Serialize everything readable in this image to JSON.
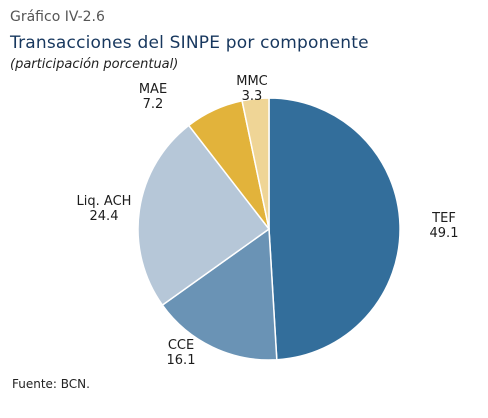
{
  "header": {
    "chart_number": "Gráfico IV-2.6",
    "title": "Transacciones del SINPE por componente",
    "subtitle": "(participación porcentual)"
  },
  "footer": {
    "source": "Fuente: BCN."
  },
  "colors": {
    "TEF": "#336e9b",
    "CCE": "#6a93b5",
    "Liq. ACH": "#b6c7d8",
    "MAE": "#e2b33b",
    "MMC": "#efd596",
    "slice_border": "#ffffff",
    "title": "#17375e"
  },
  "chart_data": {
    "type": "pie",
    "categories": [
      "TEF",
      "CCE",
      "Liq. ACH",
      "MAE",
      "MMC"
    ],
    "values": [
      49.1,
      16.1,
      24.4,
      7.2,
      3.3
    ],
    "value_labels": [
      "49.1",
      "16.1",
      "24.4",
      "7.2",
      "3.3"
    ],
    "start": "12 o'clock",
    "direction": "clockwise",
    "legend": "none (direct labels)"
  }
}
